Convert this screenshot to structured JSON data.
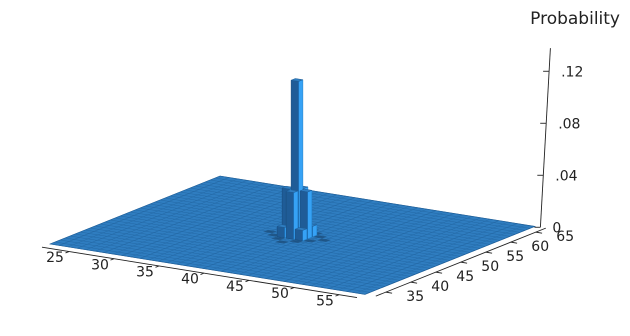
{
  "chart_data": {
    "type": "surface3d",
    "title": "",
    "xlabel": "",
    "ylabel": "",
    "zlabel": "Probability",
    "x_ticks": [
      "25",
      "30",
      "35",
      "40",
      "45",
      "50",
      "55"
    ],
    "y_ticks": [
      "35",
      "40",
      "45",
      "50",
      "55",
      "60",
      "65"
    ],
    "z_ticks": [
      "0",
      ".04",
      ".08",
      ".12"
    ],
    "xlim": [
      22,
      57
    ],
    "ylim": [
      33,
      67
    ],
    "zlim": [
      0,
      0.13
    ],
    "surface_color": "#2f7dc0",
    "peak": {
      "x": 40,
      "y": 50,
      "z": 0.12
    },
    "shoulder_cells": [
      {
        "x": 39,
        "y": 50,
        "z": 0.036
      },
      {
        "x": 41,
        "y": 50,
        "z": 0.036
      },
      {
        "x": 40,
        "y": 49,
        "z": 0.036
      },
      {
        "x": 40,
        "y": 51,
        "z": 0.036
      },
      {
        "x": 39,
        "y": 49,
        "z": 0.008
      },
      {
        "x": 41,
        "y": 49,
        "z": 0.008
      },
      {
        "x": 39,
        "y": 51,
        "z": 0.008
      },
      {
        "x": 41,
        "y": 51,
        "z": 0.008
      }
    ],
    "grid": false
  }
}
